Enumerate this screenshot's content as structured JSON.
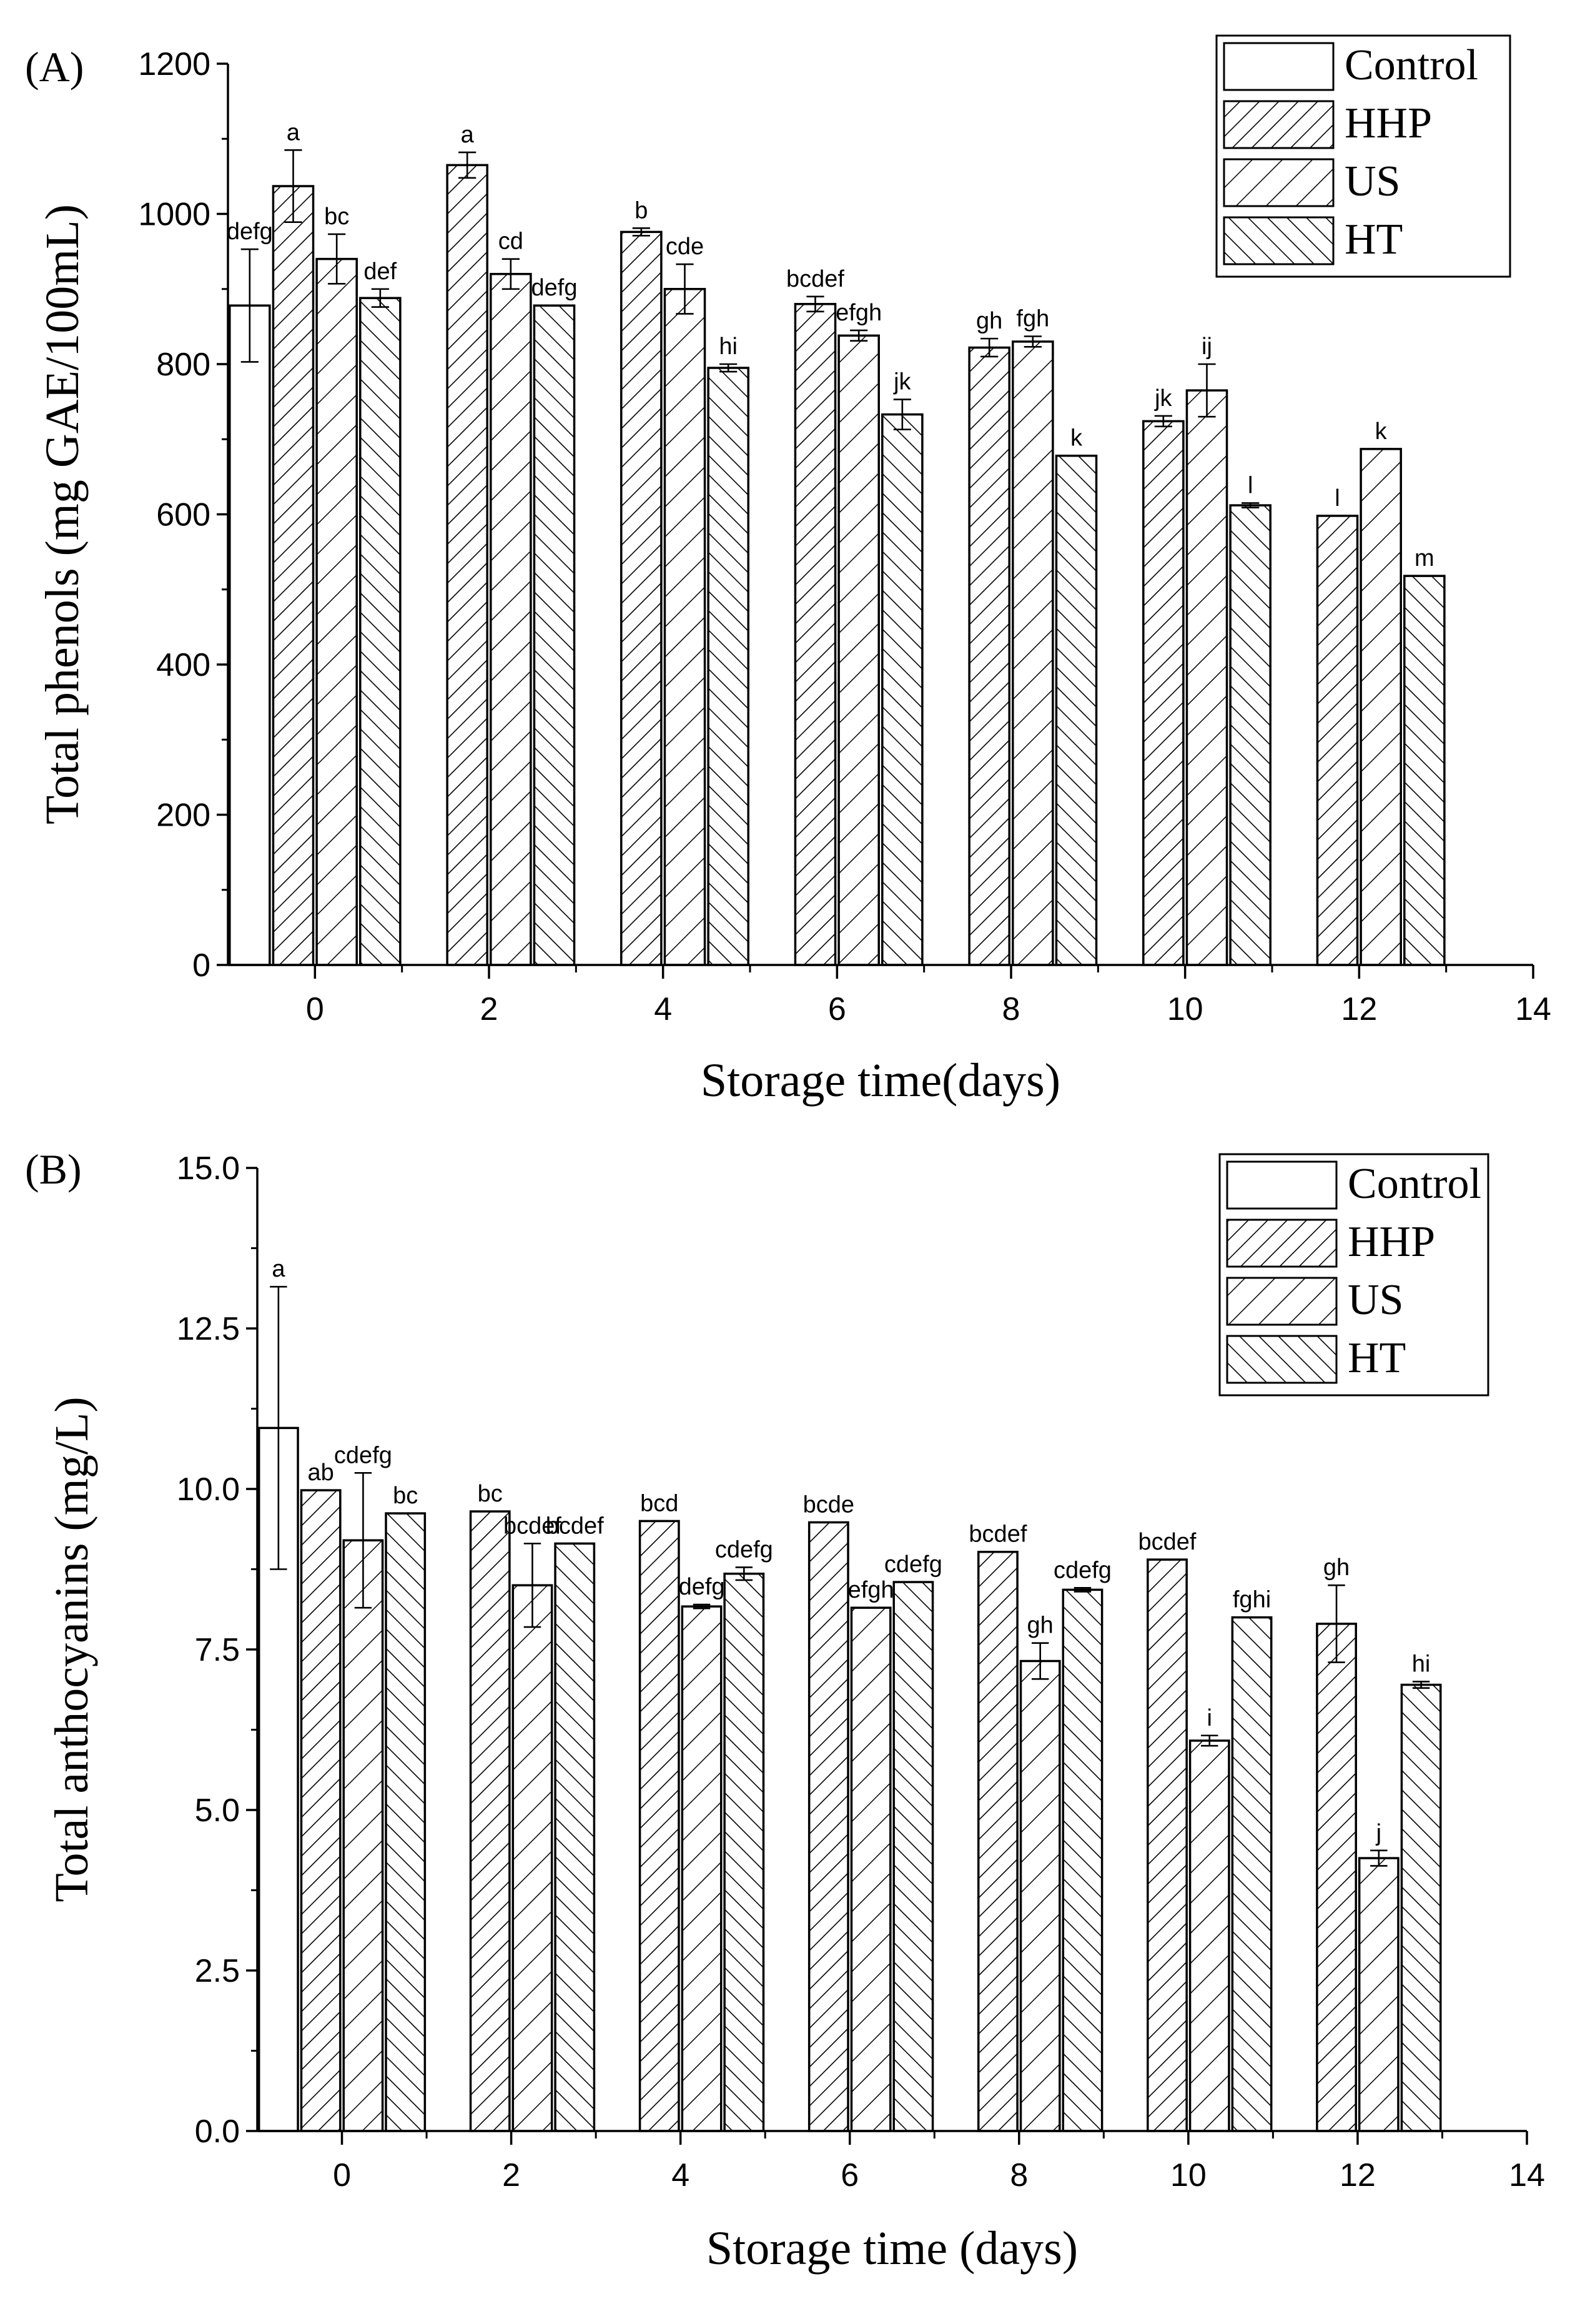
{
  "chart_data": [
    {
      "type": "bar",
      "panel_label": "(A)",
      "xlabel": "Storage time(days)",
      "ylabel": "Total phenols (mg GAE/100mL)",
      "xlim": [
        -1.0,
        14
      ],
      "ylim": [
        0,
        1200
      ],
      "xticks": [
        0,
        2,
        4,
        6,
        8,
        10,
        12,
        14
      ],
      "yticks": [
        0,
        200,
        400,
        600,
        800,
        1000,
        1200
      ],
      "ytick_labels": [
        "0",
        "200",
        "400",
        "600",
        "800",
        "1000",
        "1200"
      ],
      "legend_position": "top-right",
      "grid": false,
      "series": [
        {
          "name": "Control",
          "pattern": "none",
          "x": [
            -0.75
          ],
          "values": [
            878
          ],
          "errors": [
            75
          ],
          "labels": [
            "defg"
          ]
        },
        {
          "name": "HHP",
          "pattern": "hatch-fine",
          "x": [
            -0.25,
            1.75,
            3.75,
            5.75,
            7.75,
            9.75,
            11.75
          ],
          "values": [
            1037,
            1065,
            976,
            880,
            822,
            724,
            598
          ],
          "errors": [
            48,
            17,
            5,
            10,
            12,
            7,
            0
          ],
          "labels": [
            "a",
            "a",
            "b",
            "bcdef",
            "gh",
            "jk",
            "l"
          ]
        },
        {
          "name": "US",
          "pattern": "hatch-wide",
          "x": [
            0.25,
            2.25,
            4.25,
            6.25,
            8.25,
            10.25,
            12.25
          ],
          "values": [
            940,
            920,
            900,
            838,
            830,
            765,
            687
          ],
          "errors": [
            33,
            20,
            33,
            7,
            7,
            35,
            0
          ],
          "labels": [
            "bc",
            "cd",
            "cde",
            "efgh",
            "fgh",
            "ij",
            "k"
          ]
        },
        {
          "name": "HT",
          "pattern": "hatch-back",
          "x": [
            0.75,
            2.75,
            4.75,
            6.75,
            8.75,
            10.75,
            12.75
          ],
          "values": [
            888,
            878,
            795,
            733,
            678,
            612,
            518
          ],
          "errors": [
            12,
            0,
            5,
            20,
            0,
            3,
            0
          ],
          "labels": [
            "def",
            "defg",
            "hi",
            "jk",
            "k",
            "l",
            "m"
          ]
        }
      ]
    },
    {
      "type": "bar",
      "panel_label": "(B)",
      "xlabel": "Storage time (days)",
      "ylabel": "Total anthocyanins (mg/L)",
      "xlim": [
        -1.0,
        14
      ],
      "ylim": [
        0,
        15
      ],
      "xticks": [
        0,
        2,
        4,
        6,
        8,
        10,
        12,
        14
      ],
      "yticks": [
        0,
        2.5,
        5,
        7.5,
        10,
        12.5,
        15
      ],
      "ytick_labels": [
        "0.0",
        "2.5",
        "5.0",
        "7.5",
        "10.0",
        "12.5",
        "15.0"
      ],
      "legend_position": "top-right",
      "grid": false,
      "series": [
        {
          "name": "Control",
          "pattern": "none",
          "x": [
            -0.75
          ],
          "values": [
            10.95
          ],
          "errors": [
            2.2
          ],
          "labels": [
            "a"
          ]
        },
        {
          "name": "HHP",
          "pattern": "hatch-fine",
          "x": [
            -0.25,
            1.75,
            3.75,
            5.75,
            7.75,
            9.75,
            11.75
          ],
          "values": [
            9.98,
            9.65,
            9.5,
            9.48,
            9.02,
            8.9,
            7.9
          ],
          "errors": [
            0,
            0,
            0,
            0,
            0,
            0,
            0.6
          ],
          "labels": [
            "ab",
            "bc",
            "bcd",
            "bcde",
            "bcdef",
            "bcdef",
            "gh"
          ]
        },
        {
          "name": "US",
          "pattern": "hatch-wide",
          "x": [
            0.25,
            2.25,
            4.25,
            6.25,
            8.25,
            10.25,
            12.25
          ],
          "values": [
            9.2,
            8.5,
            8.17,
            8.15,
            7.32,
            6.08,
            4.25
          ],
          "errors": [
            1.05,
            0.65,
            0.03,
            0,
            0.28,
            0.08,
            0.12
          ],
          "labels": [
            "cdefg",
            "bcdef",
            "defg",
            "efgh",
            "gh",
            "i",
            "j"
          ]
        },
        {
          "name": "HT",
          "pattern": "hatch-back",
          "x": [
            0.75,
            2.75,
            4.75,
            6.75,
            8.75,
            10.75,
            12.75
          ],
          "values": [
            9.62,
            9.15,
            8.68,
            8.55,
            8.43,
            8.0,
            6.95
          ],
          "errors": [
            0,
            0,
            0.1,
            0,
            0.03,
            0,
            0.05
          ],
          "labels": [
            "bc",
            "bcdef",
            "cdefg",
            "cdefg",
            "cdefg",
            "fghi",
            "hi"
          ]
        }
      ]
    }
  ]
}
